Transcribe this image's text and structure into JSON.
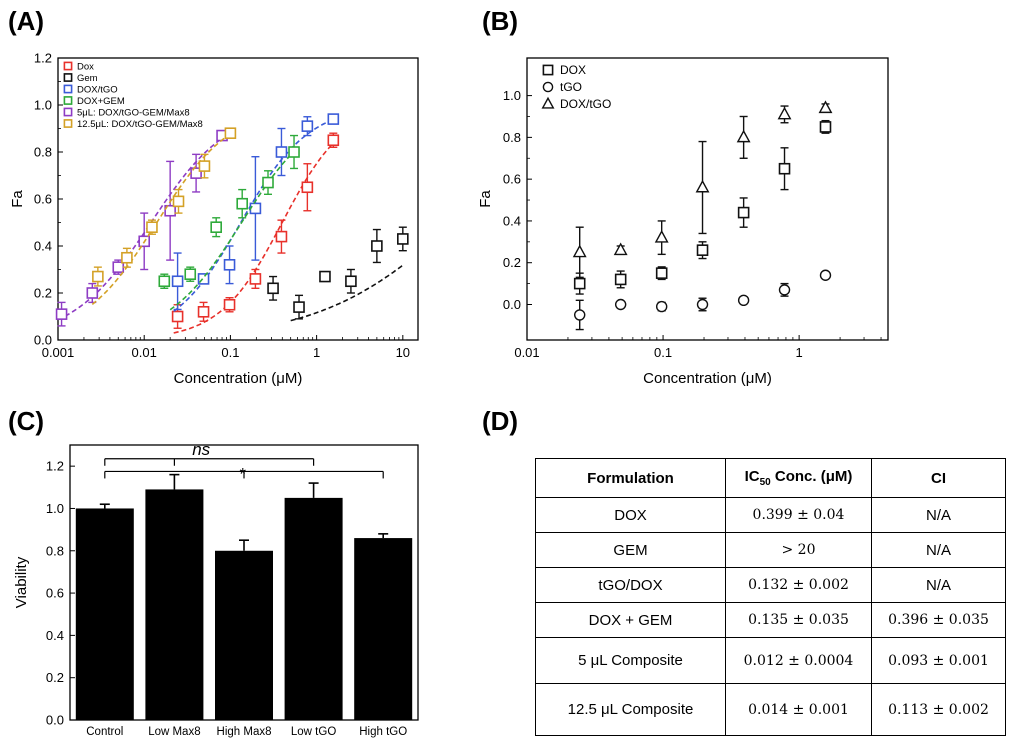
{
  "panels": {
    "A": "(A)",
    "B": "(B)",
    "C": "(C)",
    "D": "(D)"
  },
  "chart_data": [
    {
      "panel": "A",
      "type": "scatter",
      "xscale": "log",
      "xlim": [
        0.001,
        15
      ],
      "ylim": [
        0.0,
        1.2
      ],
      "xlabel": "Concentration (μM)",
      "ylabel": "Fa",
      "xticks": [
        0.001,
        0.01,
        0.1,
        1,
        10
      ],
      "xtick_labels": [
        "0.001",
        "0.01",
        "0.1",
        "1",
        "10"
      ],
      "yticks": [
        0.0,
        0.2,
        0.4,
        0.6,
        0.8,
        1.0,
        1.2
      ],
      "ytick_labels": [
        "0.0",
        "0.2",
        "0.4",
        "0.6",
        "0.8",
        "1.0",
        "1.2"
      ],
      "legend_position": "top-left",
      "series": [
        {
          "name": "Dox",
          "color": "#e8312b",
          "marker": "square",
          "x": [
            0.0244,
            0.0488,
            0.0977,
            0.195,
            0.391,
            0.781,
            1.5625
          ],
          "y": [
            0.1,
            0.12,
            0.15,
            0.26,
            0.44,
            0.65,
            0.85
          ],
          "err": [
            0.05,
            0.04,
            0.03,
            0.04,
            0.07,
            0.1,
            0.03
          ],
          "fit_x": [
            0.022,
            1.6
          ],
          "fit_ec50": 0.399,
          "fit_m": 1.2
        },
        {
          "name": "Gem",
          "color": "#111111",
          "marker": "square",
          "x": [
            0.3125,
            0.625,
            1.25,
            2.5,
            5.0,
            10.0
          ],
          "y": [
            0.22,
            0.14,
            0.27,
            0.25,
            0.4,
            0.43
          ],
          "err": [
            0.05,
            0.05,
            0.02,
            0.05,
            0.07,
            0.05
          ],
          "fit_x": [
            0.5,
            10
          ],
          "fit_ec50": 40,
          "fit_m": 0.55
        },
        {
          "name": "DOX/tGO",
          "color": "#3a5bd8",
          "marker": "square",
          "x": [
            0.0244,
            0.0488,
            0.0977,
            0.195,
            0.391,
            0.781,
            1.5625
          ],
          "y": [
            0.25,
            0.26,
            0.32,
            0.56,
            0.8,
            0.91,
            0.94
          ],
          "err": [
            0.12,
            0.02,
            0.08,
            0.22,
            0.1,
            0.04,
            0.02
          ],
          "fit_x": [
            0.022,
            1.6
          ],
          "fit_ec50": 0.132,
          "fit_m": 1.1
        },
        {
          "name": "DOX+GEM",
          "color": "#2eaa3a",
          "marker": "square",
          "x": [
            0.0171,
            0.0342,
            0.0684,
            0.137,
            0.273,
            0.547
          ],
          "y": [
            0.25,
            0.28,
            0.48,
            0.58,
            0.67,
            0.8
          ],
          "err": [
            0.03,
            0.03,
            0.04,
            0.06,
            0.05,
            0.07
          ],
          "fit_x": [
            0.02,
            0.6
          ],
          "fit_ec50": 0.135,
          "fit_m": 1.0
        },
        {
          "name": "5μL: DOX/tGO-GEM/Max8",
          "color": "#8e3cc4",
          "marker": "square",
          "x": [
            0.0011,
            0.0025,
            0.005,
            0.01,
            0.02,
            0.04,
            0.08
          ],
          "y": [
            0.11,
            0.2,
            0.31,
            0.42,
            0.55,
            0.71,
            0.87
          ],
          "err": [
            0.05,
            0.04,
            0.03,
            0.12,
            0.21,
            0.08,
            0.02
          ],
          "fit_x": [
            0.001,
            0.08
          ],
          "fit_ec50": 0.012,
          "fit_m": 0.95
        },
        {
          "name": "12.5μL: DOX/tGO-GEM/Max8",
          "color": "#d4a126",
          "marker": "square",
          "x": [
            0.0029,
            0.0063,
            0.0123,
            0.025,
            0.05,
            0.1
          ],
          "y": [
            0.27,
            0.35,
            0.48,
            0.59,
            0.74,
            0.88
          ],
          "err": [
            0.04,
            0.04,
            0.03,
            0.05,
            0.05,
            0.02
          ],
          "fit_x": [
            0.0025,
            0.1
          ],
          "fit_ec50": 0.014,
          "fit_m": 1.0
        }
      ]
    },
    {
      "panel": "B",
      "type": "scatter",
      "xscale": "log",
      "xlim": [
        0.01,
        4.5
      ],
      "ylim": [
        -0.17,
        1.18
      ],
      "xlabel": "Concentration (μM)",
      "ylabel": "Fa",
      "xticks": [
        0.01,
        0.1,
        1
      ],
      "xtick_labels": [
        "0.01",
        "0.1",
        "1"
      ],
      "yticks": [
        0.0,
        0.2,
        0.4,
        0.6,
        0.8,
        1.0
      ],
      "ytick_labels": [
        "0.0",
        "0.2",
        "0.4",
        "0.6",
        "0.8",
        "1.0"
      ],
      "legend_position": "top-left",
      "series": [
        {
          "name": "DOX",
          "color": "#111111",
          "marker": "square",
          "x": [
            0.0244,
            0.0488,
            0.0977,
            0.195,
            0.391,
            0.781,
            1.5625
          ],
          "y": [
            0.1,
            0.12,
            0.15,
            0.26,
            0.44,
            0.65,
            0.85
          ],
          "err": [
            0.05,
            0.04,
            0.03,
            0.04,
            0.07,
            0.1,
            0.03
          ]
        },
        {
          "name": "tGO",
          "color": "#111111",
          "marker": "circle",
          "x": [
            0.0244,
            0.0488,
            0.0977,
            0.195,
            0.391,
            0.781,
            1.5625
          ],
          "y": [
            -0.05,
            0.0,
            -0.01,
            0.0,
            0.02,
            0.07,
            0.14
          ],
          "err": [
            0.07,
            0.01,
            0.02,
            0.03,
            0.01,
            0.03,
            0.01
          ]
        },
        {
          "name": "DOX/tGO",
          "color": "#111111",
          "marker": "triangle",
          "x": [
            0.0244,
            0.0488,
            0.0977,
            0.195,
            0.391,
            0.781,
            1.5625
          ],
          "y": [
            0.25,
            0.26,
            0.32,
            0.56,
            0.8,
            0.91,
            0.94
          ],
          "err": [
            0.12,
            0.02,
            0.08,
            0.22,
            0.1,
            0.04,
            0.02
          ]
        }
      ]
    },
    {
      "panel": "C",
      "type": "bar",
      "ylim": [
        0.0,
        1.3
      ],
      "ylabel": "Viability",
      "yticks": [
        0.0,
        0.2,
        0.4,
        0.6,
        0.8,
        1.0,
        1.2
      ],
      "ytick_labels": [
        "0.0",
        "0.2",
        "0.4",
        "0.6",
        "0.8",
        "1.0",
        "1.2"
      ],
      "categories": [
        "Control",
        "Low Max8",
        "High Max8",
        "Low tGO",
        "High tGO"
      ],
      "values": [
        1.0,
        1.09,
        0.8,
        1.05,
        0.86
      ],
      "err": [
        0.02,
        0.07,
        0.05,
        0.07,
        0.02
      ],
      "bar_color": "#000000",
      "annotations": [
        {
          "text": "ns",
          "italic": true,
          "groups": [
            0,
            1,
            3
          ],
          "y": 1.235
        },
        {
          "text": "*",
          "italic": false,
          "groups": [
            0,
            2,
            4
          ],
          "y": 1.175
        }
      ]
    }
  ],
  "table": {
    "headers": [
      "Formulation",
      "IC",
      "50",
      " Conc. (μM)",
      "CI"
    ],
    "rows": [
      {
        "name": "DOX",
        "ic50": "0.399 ± 0.04",
        "ci": "N/A"
      },
      {
        "name": "GEM",
        "ic50": "> 20",
        "ci": "N/A"
      },
      {
        "name": "tGO/DOX",
        "ic50": "0.132 ± 0.002",
        "ci": "N/A"
      },
      {
        "name": "DOX + GEM",
        "ic50": "0.135 ± 0.035",
        "ci": "0.396 ± 0.035"
      },
      {
        "name": "5 μL Composite",
        "ic50": "0.012 ± 0.0004",
        "ci": "0.093 ± 0.001"
      },
      {
        "name": "12.5 μL Composite",
        "ic50": "0.014 ± 0.001",
        "ci": "0.113 ± 0.002"
      }
    ]
  }
}
